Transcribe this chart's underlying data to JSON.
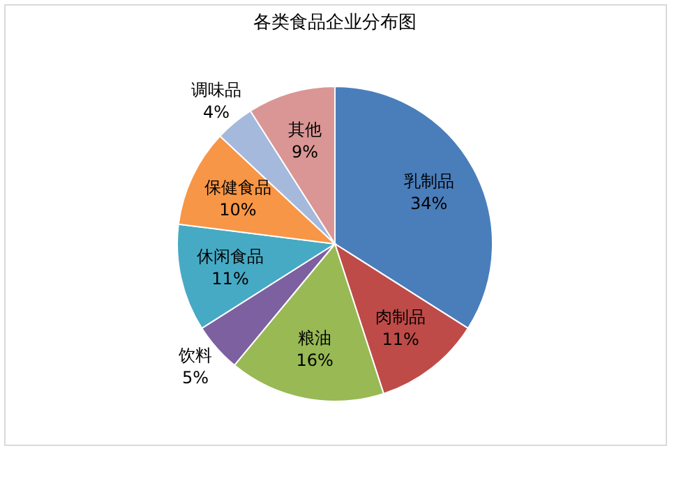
{
  "chart_data": {
    "type": "pie",
    "title": "各类食品企业分布图",
    "categories": [
      "乳制品",
      "肉制品",
      "粮油",
      "饮料",
      "休闲食品",
      "保健食品",
      "调味品",
      "其他"
    ],
    "values": [
      34,
      11,
      16,
      5,
      11,
      10,
      4,
      9
    ],
    "value_labels": [
      "34%",
      "11%",
      "16%",
      "5%",
      "11%",
      "10%",
      "4%",
      "9%"
    ],
    "colors": [
      "#4a7ebb",
      "#be4b48",
      "#98b954",
      "#7d60a0",
      "#46aac5",
      "#f79646",
      "#a5b9dd",
      "#d99694"
    ],
    "legend": false
  }
}
